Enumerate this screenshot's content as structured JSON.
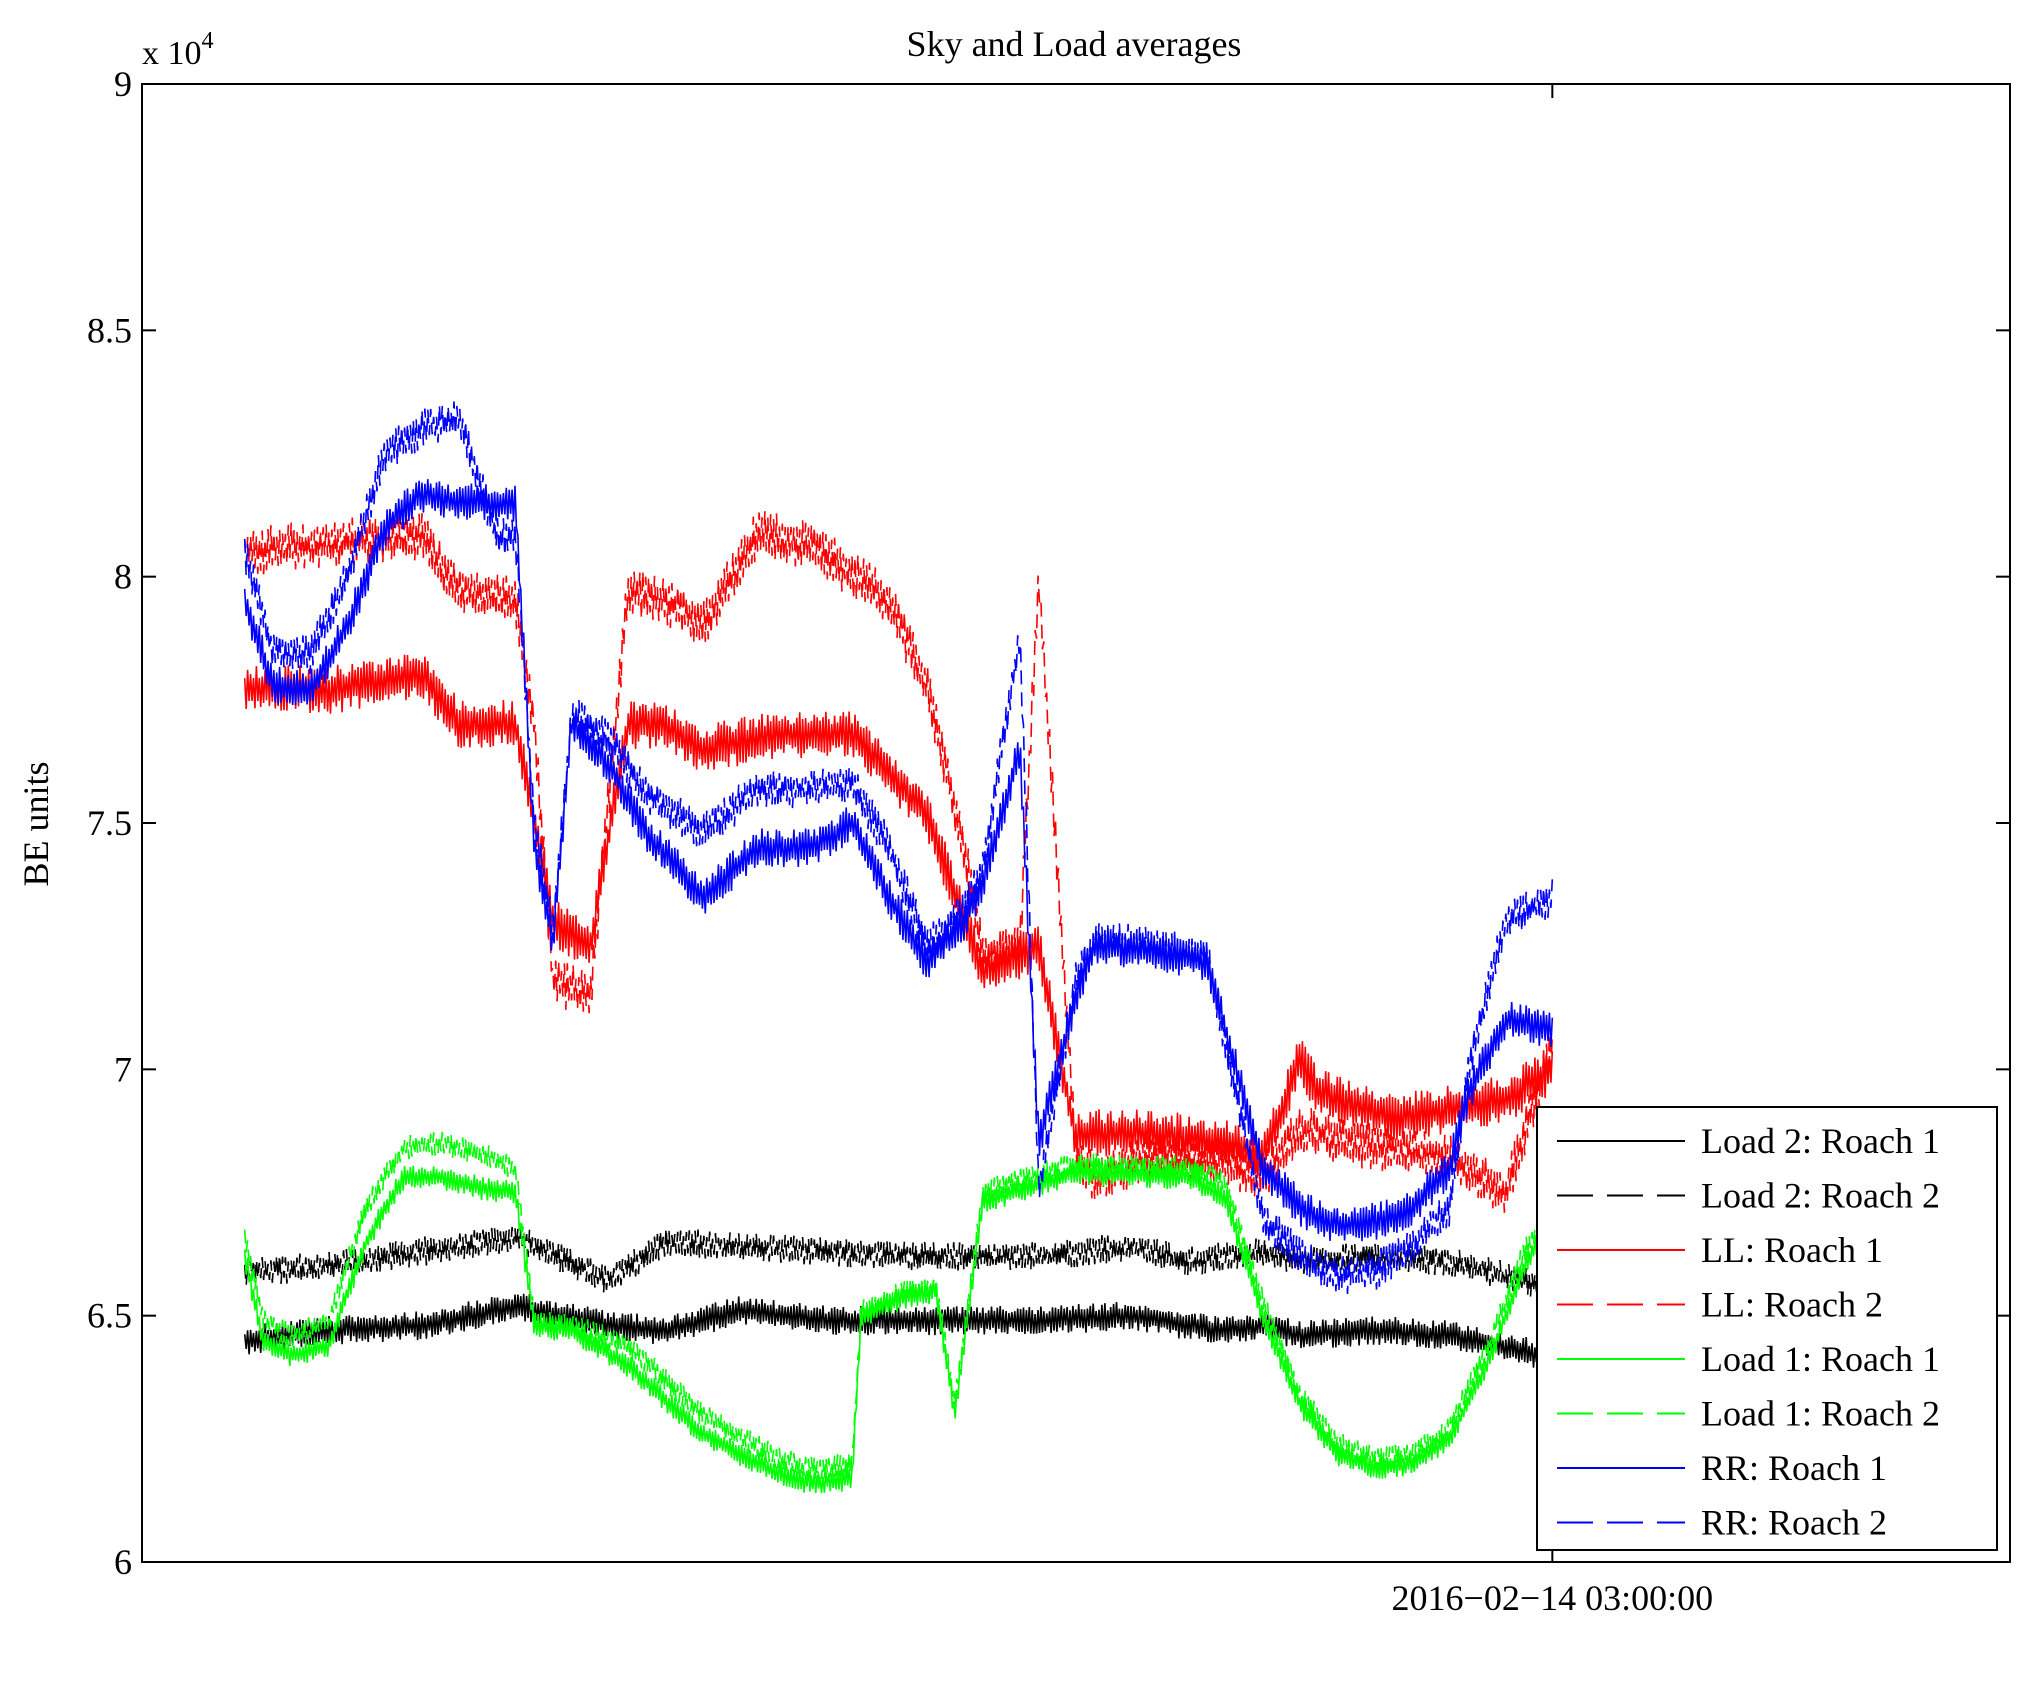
{
  "chart_data": {
    "type": "line",
    "title": "Sky and Load averages",
    "xlabel": "",
    "ylabel": "BE units",
    "y_exponent_label": "x 10",
    "y_exponent_power": "4",
    "ylim": [
      60000,
      90000
    ],
    "xlim": [
      0,
      100
    ],
    "yticks": [
      {
        "value": 60000,
        "label": "6"
      },
      {
        "value": 65000,
        "label": "6.5"
      },
      {
        "value": 70000,
        "label": "7"
      },
      {
        "value": 75000,
        "label": "7.5"
      },
      {
        "value": 80000,
        "label": "8"
      },
      {
        "value": 85000,
        "label": "8.5"
      },
      {
        "value": 90000,
        "label": "9"
      }
    ],
    "xticks": [
      {
        "value": 75.5,
        "label": "2016−02−14 03:00:00"
      }
    ],
    "legend_position": "bottom-right",
    "series": [
      {
        "name": "Load 2: Roach 1",
        "color": "#000000",
        "dash": "solid",
        "noise": 300,
        "x": [
          5.5,
          10,
          15,
          20,
          25,
          28,
          32,
          37,
          42,
          48,
          53,
          56,
          58,
          60,
          62,
          66,
          70,
          75,
          75.5
        ],
        "y": [
          64500,
          64700,
          64800,
          65200,
          64800,
          64700,
          65100,
          64900,
          64900,
          64900,
          65000,
          64800,
          64700,
          64800,
          64600,
          64700,
          64600,
          64200,
          64100
        ]
      },
      {
        "name": "Load 2: Roach 2",
        "color": "#000000",
        "dash": "dashed",
        "noise": 300,
        "x": [
          5.5,
          10,
          15,
          20,
          25,
          28,
          32,
          37,
          42,
          48,
          53,
          56,
          58,
          60,
          62,
          66,
          70,
          75,
          75.5
        ],
        "y": [
          65900,
          66000,
          66300,
          66600,
          65700,
          66500,
          66400,
          66300,
          66200,
          66200,
          66400,
          66100,
          66200,
          66300,
          66100,
          66200,
          66100,
          65600,
          65500
        ]
      },
      {
        "name": "LL: Roach 1",
        "color": "#ff0000",
        "dash": "solid",
        "noise": 500,
        "x": [
          5.5,
          10,
          15,
          17,
          20,
          22,
          24,
          26,
          28,
          30,
          34,
          38,
          42,
          45,
          48,
          50,
          51,
          54,
          58,
          60,
          62,
          63,
          65,
          67,
          70,
          73,
          75.5
        ],
        "y": [
          77700,
          77700,
          78000,
          77000,
          77000,
          73000,
          72500,
          77000,
          77000,
          76500,
          76800,
          76800,
          75200,
          72000,
          72500,
          68600,
          68700,
          68700,
          68500,
          68200,
          70200,
          69500,
          69300,
          69000,
          69200,
          69400,
          70000
        ]
      },
      {
        "name": "LL: Roach 2",
        "color": "#ff0000",
        "dash": "dashed",
        "noise": 500,
        "x": [
          5.5,
          10,
          15,
          17,
          20,
          21,
          22,
          24,
          26,
          28,
          30,
          33,
          36,
          40,
          42,
          44,
          45,
          47,
          48,
          50,
          51,
          54,
          58,
          60,
          62,
          65,
          70,
          73,
          75.5
        ],
        "y": [
          80500,
          80700,
          80800,
          79700,
          79500,
          77000,
          71800,
          71500,
          79700,
          79500,
          79000,
          80900,
          80600,
          79500,
          77800,
          74500,
          72300,
          72500,
          80000,
          68200,
          67800,
          68200,
          68100,
          67800,
          68800,
          68500,
          68200,
          67500,
          70500
        ]
      },
      {
        "name": "Load 1: Roach 1",
        "color": "#00ff00",
        "dash": "solid",
        "noise": 250,
        "x": [
          5.5,
          6.5,
          8,
          10,
          12,
          14,
          16,
          18,
          20,
          21,
          23,
          26,
          30,
          34,
          36,
          38,
          38.5,
          41,
          42.5,
          43.5,
          45,
          50,
          56,
          58,
          60,
          62,
          64,
          66,
          68,
          70,
          72,
          74,
          75.5
        ],
        "y": [
          66200,
          64500,
          64200,
          64400,
          66500,
          67800,
          67800,
          67600,
          67500,
          64800,
          64700,
          64000,
          62600,
          61800,
          61600,
          61700,
          65000,
          65400,
          65500,
          63000,
          67300,
          67900,
          67800,
          67400,
          65000,
          63200,
          62200,
          61900,
          62000,
          62500,
          64000,
          66000,
          67000
        ]
      },
      {
        "name": "Load 1: Roach 2",
        "color": "#00ff00",
        "dash": "dashed",
        "noise": 250,
        "x": [
          5.5,
          6.5,
          8,
          10,
          12,
          14,
          16,
          18,
          20,
          21,
          23,
          26,
          30,
          34,
          36,
          38,
          38.5,
          41,
          42.5,
          43.5,
          45,
          50,
          56,
          58,
          60,
          62,
          64,
          66,
          68,
          70,
          72,
          74,
          75.5
        ],
        "y": [
          66600,
          64900,
          64600,
          64900,
          67200,
          68400,
          68500,
          68300,
          68000,
          64900,
          64800,
          64400,
          63000,
          62100,
          61900,
          62000,
          65100,
          65500,
          65600,
          63200,
          67500,
          68100,
          68000,
          67700,
          65300,
          63400,
          62400,
          62100,
          62200,
          62700,
          64300,
          66300,
          67200
        ]
      },
      {
        "name": "RR: Roach 1",
        "color": "#0000ff",
        "dash": "solid",
        "noise": 400,
        "x": [
          5.5,
          7,
          9,
          11,
          13,
          15,
          17,
          20,
          21,
          22,
          23,
          25,
          27,
          30,
          33,
          36,
          38,
          40,
          42,
          44,
          45,
          47,
          48,
          50,
          51,
          52,
          54,
          57,
          60,
          62,
          64,
          66,
          68,
          70,
          71,
          73,
          75.5
        ],
        "y": [
          79500,
          77800,
          77700,
          79000,
          81000,
          81700,
          81500,
          81500,
          74500,
          72600,
          77000,
          76200,
          74800,
          73500,
          74500,
          74500,
          75000,
          73500,
          72200,
          73000,
          73800,
          76500,
          68500,
          71500,
          72500,
          72500,
          72400,
          72200,
          68000,
          67200,
          66800,
          66900,
          67200,
          68000,
          69500,
          71000,
          70800
        ]
      },
      {
        "name": "RR: Roach 2",
        "color": "#0000ff",
        "dash": "dashed",
        "noise": 400,
        "x": [
          5.5,
          7,
          9,
          11,
          13,
          15,
          17,
          19,
          20,
          21,
          22,
          23,
          25,
          27,
          30,
          33,
          36,
          38,
          40,
          42,
          44,
          45,
          47,
          48,
          50,
          51,
          52,
          54,
          57,
          60,
          62,
          64,
          66,
          68,
          70,
          71,
          73,
          75.5
        ],
        "y": [
          80500,
          78500,
          78400,
          80000,
          82500,
          83000,
          83200,
          80800,
          80800,
          75000,
          72800,
          77200,
          76700,
          75600,
          74800,
          75700,
          75700,
          75800,
          74500,
          72500,
          73200,
          74100,
          78800,
          67500,
          71800,
          72600,
          72600,
          72500,
          72300,
          67000,
          66200,
          65800,
          65900,
          66400,
          67200,
          70000,
          73000,
          73500
        ]
      }
    ]
  }
}
